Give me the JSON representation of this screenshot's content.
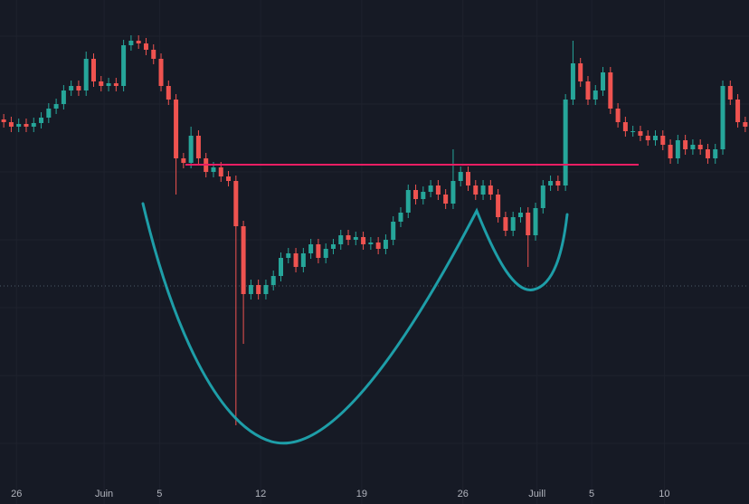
{
  "chart_data": {
    "type": "candlestick",
    "up_color": "#26a69a",
    "down_color": "#ef5350",
    "ylim": [
      0,
      557
    ],
    "xlim": [
      -0.5,
      99.5
    ],
    "grid": true,
    "xticks": [
      {
        "value": 1.7,
        "label": "26"
      },
      {
        "value": 13.4,
        "label": "Juin"
      },
      {
        "value": 20.8,
        "label": "5"
      },
      {
        "value": 34.3,
        "label": "12"
      },
      {
        "value": 47.8,
        "label": "19"
      },
      {
        "value": 61.3,
        "label": "26"
      },
      {
        "value": 71.2,
        "label": "Juill"
      },
      {
        "value": 78.5,
        "label": "5"
      },
      {
        "value": 88.2,
        "label": "10"
      }
    ],
    "open": [
      425,
      422,
      417,
      420,
      417,
      421,
      427,
      437,
      442,
      457,
      462,
      457,
      492,
      467,
      462,
      465,
      462,
      507,
      512,
      509,
      502,
      492,
      462,
      447,
      382,
      377,
      407,
      382,
      367,
      372,
      362,
      357,
      307,
      232,
      242,
      232,
      242,
      252,
      272,
      277,
      262,
      277,
      287,
      272,
      282,
      287,
      297,
      292,
      295,
      287,
      289,
      282,
      292,
      312,
      322,
      347,
      337,
      345,
      352,
      342,
      332,
      357,
      367,
      352,
      342,
      352,
      342,
      317,
      302,
      317,
      322,
      297,
      327,
      352,
      357,
      352,
      447,
      487,
      467,
      447,
      457,
      477,
      437,
      422,
      412,
      412,
      407,
      402,
      407,
      397,
      382,
      402,
      392,
      397,
      392,
      382,
      392,
      462,
      447,
      422
    ],
    "high": [
      431,
      428,
      426,
      426,
      427,
      433,
      443,
      448,
      463,
      468,
      468,
      500,
      498,
      473,
      471,
      471,
      513,
      518,
      518,
      515,
      508,
      498,
      468,
      453,
      388,
      417,
      413,
      388,
      378,
      378,
      368,
      363,
      313,
      248,
      248,
      248,
      258,
      278,
      283,
      283,
      283,
      293,
      293,
      288,
      293,
      303,
      303,
      301,
      301,
      295,
      295,
      298,
      318,
      328,
      353,
      353,
      351,
      358,
      358,
      348,
      392,
      373,
      373,
      358,
      358,
      358,
      348,
      323,
      323,
      328,
      328,
      333,
      358,
      363,
      363,
      453,
      512,
      493,
      473,
      463,
      483,
      483,
      443,
      428,
      418,
      418,
      413,
      413,
      413,
      403,
      408,
      408,
      403,
      403,
      398,
      398,
      468,
      468,
      453,
      428
    ],
    "low": [
      416,
      411,
      411,
      411,
      411,
      415,
      421,
      431,
      436,
      451,
      451,
      451,
      461,
      456,
      456,
      456,
      456,
      501,
      503,
      496,
      486,
      456,
      441,
      342,
      371,
      371,
      376,
      361,
      361,
      356,
      351,
      87,
      177,
      226,
      226,
      226,
      236,
      246,
      266,
      256,
      256,
      271,
      266,
      266,
      276,
      281,
      286,
      286,
      281,
      281,
      276,
      276,
      286,
      306,
      316,
      331,
      331,
      339,
      336,
      326,
      326,
      351,
      346,
      336,
      336,
      336,
      311,
      296,
      296,
      311,
      262,
      291,
      321,
      346,
      346,
      346,
      441,
      461,
      441,
      441,
      451,
      431,
      416,
      406,
      406,
      401,
      396,
      396,
      391,
      376,
      376,
      386,
      386,
      386,
      376,
      376,
      386,
      441,
      416,
      411
    ],
    "close": [
      422,
      417,
      420,
      417,
      421,
      427,
      437,
      442,
      457,
      462,
      457,
      492,
      467,
      462,
      465,
      462,
      507,
      512,
      509,
      502,
      492,
      462,
      447,
      382,
      377,
      407,
      382,
      367,
      372,
      362,
      357,
      307,
      232,
      242,
      232,
      242,
      252,
      272,
      277,
      262,
      277,
      287,
      272,
      282,
      287,
      297,
      292,
      295,
      287,
      289,
      282,
      292,
      312,
      322,
      347,
      337,
      345,
      352,
      342,
      332,
      357,
      367,
      352,
      342,
      352,
      342,
      317,
      302,
      317,
      322,
      297,
      327,
      352,
      357,
      352,
      447,
      487,
      467,
      447,
      457,
      477,
      437,
      422,
      412,
      412,
      407,
      402,
      407,
      397,
      382,
      402,
      392,
      397,
      392,
      382,
      392,
      462,
      447,
      422,
      417
    ]
  }
}
